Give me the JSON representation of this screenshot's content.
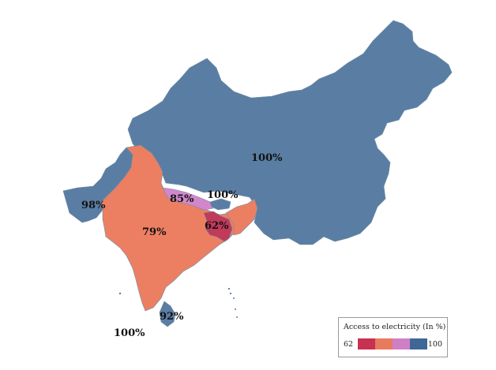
{
  "legend": {
    "title": "Access to electricity (In %)",
    "min_label": "62",
    "max_label": "100",
    "colors": [
      "#c8314f",
      "#e77b5e",
      "#cf7fc6",
      "#3e6797"
    ]
  },
  "regions": [
    {
      "id": "china",
      "value_label": "100%",
      "value": 100,
      "color": "#5a7ea3"
    },
    {
      "id": "pakistan",
      "value_label": "98%",
      "value": 98,
      "color": "#5a7ea3"
    },
    {
      "id": "india",
      "value_label": "79%",
      "value": 79,
      "color": "#ec7f62"
    },
    {
      "id": "nepal",
      "value_label": "85%",
      "value": 85,
      "color": "#d287cb"
    },
    {
      "id": "bhutan",
      "value_label": "100%",
      "value": 100,
      "color": "#5a7ea3"
    },
    {
      "id": "bangladesh",
      "value_label": "62%",
      "value": 62,
      "color": "#c23a5a"
    },
    {
      "id": "sri-lanka",
      "value_label": "92%",
      "value": 92,
      "color": "#5a7ea3"
    },
    {
      "id": "maldives",
      "value_label": "100%",
      "value": 100,
      "color": "#5a7ea3"
    }
  ]
}
